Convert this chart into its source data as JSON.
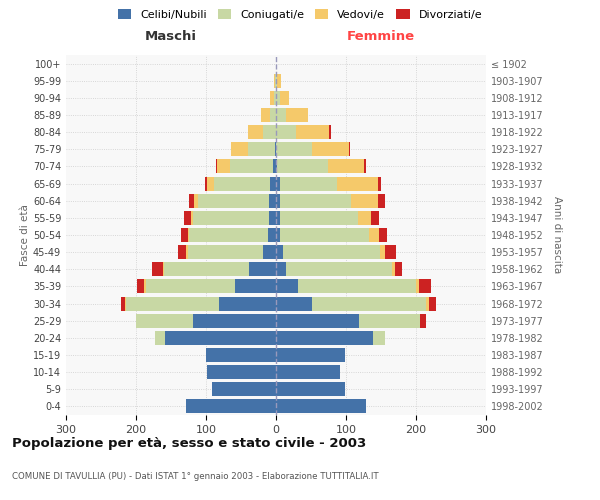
{
  "age_groups": [
    "0-4",
    "5-9",
    "10-14",
    "15-19",
    "20-24",
    "25-29",
    "30-34",
    "35-39",
    "40-44",
    "45-49",
    "50-54",
    "55-59",
    "60-64",
    "65-69",
    "70-74",
    "75-79",
    "80-84",
    "85-89",
    "90-94",
    "95-99",
    "100+"
  ],
  "birth_years": [
    "1998-2002",
    "1993-1997",
    "1988-1992",
    "1983-1987",
    "1978-1982",
    "1973-1977",
    "1968-1972",
    "1963-1967",
    "1958-1962",
    "1953-1957",
    "1948-1952",
    "1943-1947",
    "1938-1942",
    "1933-1937",
    "1928-1932",
    "1923-1927",
    "1918-1922",
    "1913-1917",
    "1908-1912",
    "1903-1907",
    "≤ 1902"
  ],
  "maschi": {
    "celibi": [
      128,
      92,
      98,
      100,
      158,
      118,
      82,
      58,
      38,
      18,
      12,
      10,
      10,
      8,
      4,
      2,
      0,
      0,
      0,
      0,
      0
    ],
    "coniugati": [
      0,
      0,
      0,
      0,
      15,
      82,
      132,
      128,
      122,
      108,
      112,
      108,
      102,
      80,
      62,
      38,
      18,
      8,
      3,
      1,
      0
    ],
    "vedovi": [
      0,
      0,
      0,
      0,
      0,
      0,
      2,
      2,
      2,
      2,
      2,
      3,
      5,
      10,
      18,
      24,
      22,
      14,
      5,
      2,
      0
    ],
    "divorziati": [
      0,
      0,
      0,
      0,
      0,
      0,
      5,
      10,
      15,
      12,
      10,
      10,
      8,
      3,
      2,
      0,
      0,
      0,
      0,
      0,
      0
    ]
  },
  "femmine": {
    "nubili": [
      128,
      98,
      92,
      98,
      138,
      118,
      52,
      32,
      14,
      10,
      5,
      5,
      5,
      5,
      2,
      0,
      0,
      0,
      0,
      0,
      0
    ],
    "coniugate": [
      0,
      0,
      0,
      0,
      18,
      88,
      162,
      168,
      152,
      138,
      128,
      112,
      102,
      82,
      72,
      52,
      28,
      14,
      5,
      2,
      0
    ],
    "vedove": [
      0,
      0,
      0,
      0,
      0,
      0,
      4,
      4,
      4,
      8,
      14,
      18,
      38,
      58,
      52,
      52,
      48,
      32,
      14,
      5,
      0
    ],
    "divorziate": [
      0,
      0,
      0,
      0,
      0,
      8,
      10,
      18,
      10,
      15,
      12,
      12,
      10,
      5,
      2,
      2,
      2,
      0,
      0,
      0,
      0
    ]
  },
  "colors": {
    "celibi_nubili": "#4472a8",
    "coniugati": "#c8d8a4",
    "vedovi": "#f5c96a",
    "divorziati": "#cc2222"
  },
  "xlim": 300,
  "title": "Popolazione per età, sesso e stato civile - 2003",
  "subtitle": "COMUNE DI TAVULLIA (PU) - Dati ISTAT 1° gennaio 2003 - Elaborazione TUTTITALIA.IT",
  "ylabel": "Fasce di età",
  "ylabel_right": "Anni di nascita",
  "legend_labels": [
    "Celibi/Nubili",
    "Coniugati/e",
    "Vedovi/e",
    "Divorziati/e"
  ],
  "maschi_label": "Maschi",
  "femmine_label": "Femmine",
  "bg_color": "#f8f8f8",
  "grid_color": "#cccccc"
}
